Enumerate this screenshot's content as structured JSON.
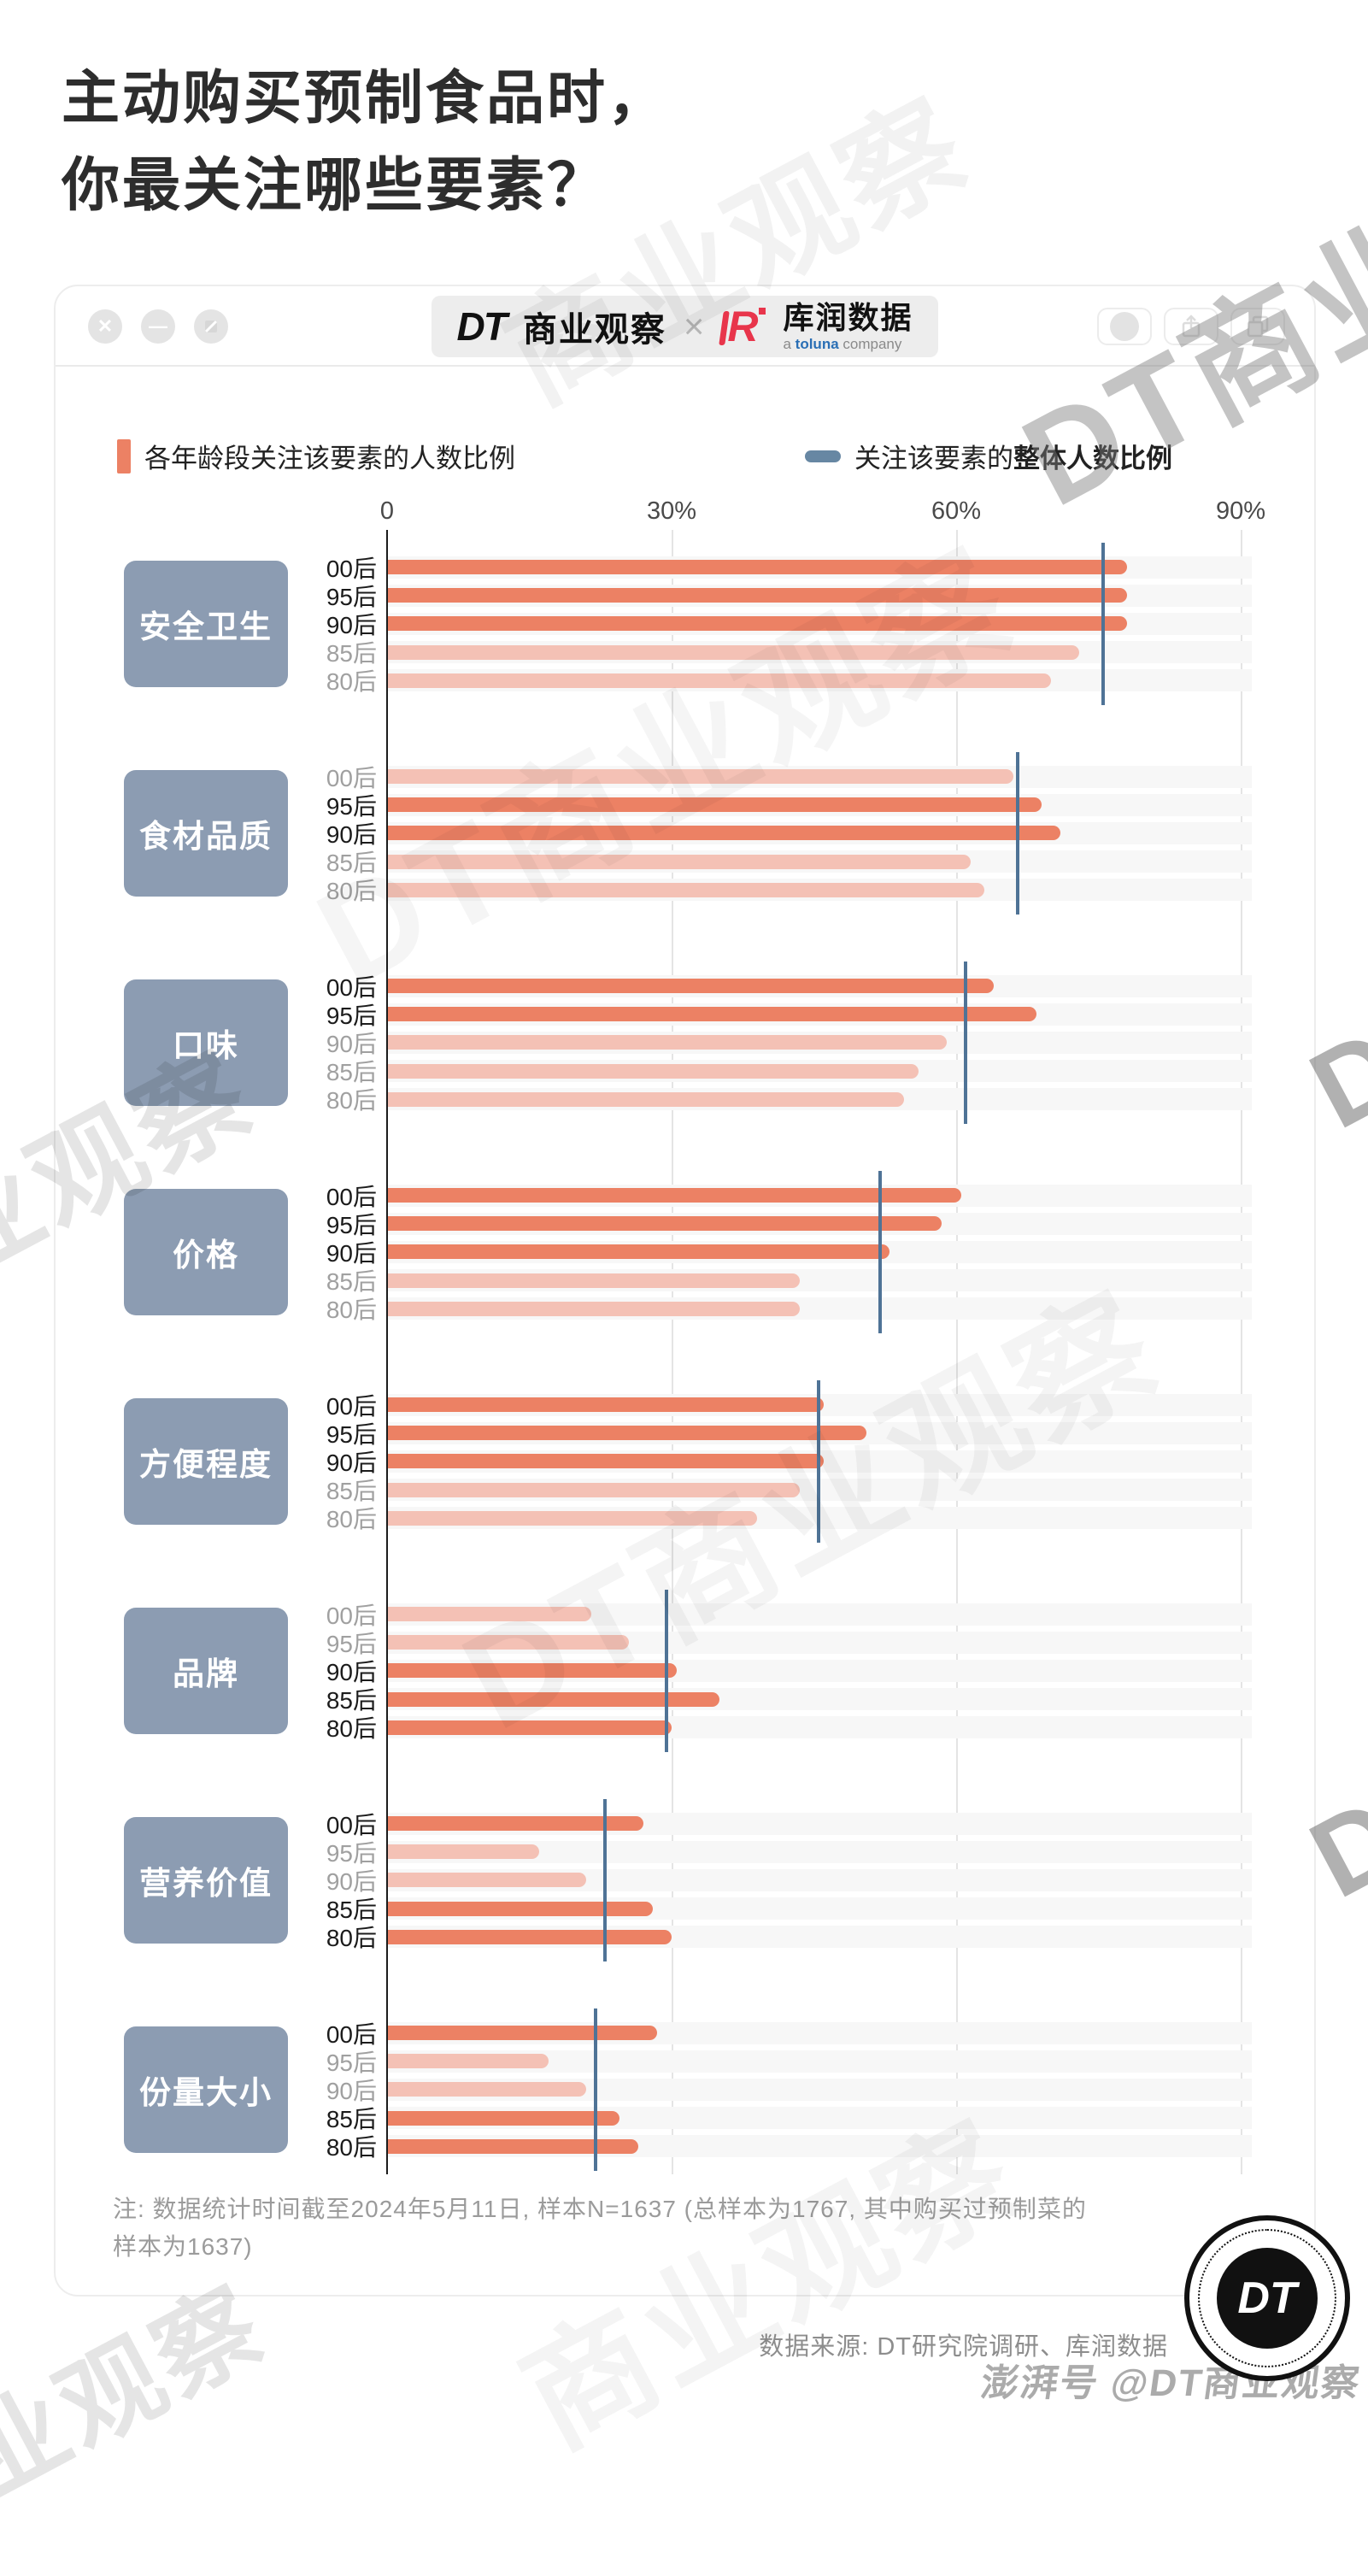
{
  "page": {
    "title_line1": "主动购买预制食品时，",
    "title_line2": "你最关注哪些要素？",
    "note_line1": "注: 数据统计时间截至2024年5月11日, 样本N=1637 (总样本为1767, 其中购买过预制菜的",
    "note_line2": "样本为1637)",
    "source": "数据来源: DT研究院调研、库润数据",
    "footer_watermark": "澎湃号 @DT商业观察",
    "watermark_full": "DT商业观察",
    "watermark_short": "商业观察"
  },
  "window": {
    "badge": {
      "dt_logo": "DT",
      "dt_name": "商业观察",
      "separator": "×",
      "kr_logo": "R",
      "kr_name": "库润数据",
      "kr_sub_a": "a ",
      "kr_sub_brand": "toluna",
      "kr_sub_b": " company",
      "dt_circle_logo": "DT"
    }
  },
  "legend": {
    "bars_label": "各年龄段关注该要素的人数比例",
    "line_label_prefix": "关注该要素的",
    "line_label_bold": "整体人数比例",
    "bar_color": "#EC8164",
    "bar_color_soft": "#F4C1B5",
    "overall_line_color": "#4F7396",
    "category_box_color": "#8C9CB2"
  },
  "chart_data": {
    "type": "bar",
    "orientation": "horizontal",
    "unit": "percent",
    "xlim": [
      0,
      90
    ],
    "x_ticks": [
      "0",
      "30%",
      "60%",
      "90%"
    ],
    "age_groups": [
      "00后",
      "95后",
      "90后",
      "85后",
      "80后"
    ],
    "categories": [
      {
        "label": "安全卫生",
        "values": [
          78,
          78,
          78,
          73,
          70
        ],
        "emphasis": [
          true,
          true,
          true,
          false,
          false
        ],
        "overall": 75.5
      },
      {
        "label": "食材品质",
        "values": [
          66,
          69,
          71,
          61.5,
          63
        ],
        "emphasis": [
          false,
          true,
          true,
          false,
          false
        ],
        "overall": 66.5
      },
      {
        "label": "口味",
        "values": [
          64,
          68.5,
          59,
          56,
          54.5
        ],
        "emphasis": [
          true,
          true,
          false,
          false,
          false
        ],
        "overall": 61
      },
      {
        "label": "价格",
        "values": [
          60.5,
          58.5,
          53,
          43.5,
          43.5
        ],
        "emphasis": [
          true,
          true,
          true,
          false,
          false
        ],
        "overall": 52
      },
      {
        "label": "方便程度",
        "values": [
          46,
          50.5,
          46,
          43.5,
          39
        ],
        "emphasis": [
          true,
          true,
          true,
          false,
          false
        ],
        "overall": 45.5
      },
      {
        "label": "品牌",
        "values": [
          21.5,
          25.5,
          30.5,
          35,
          30
        ],
        "emphasis": [
          false,
          false,
          true,
          true,
          true
        ],
        "overall": 29.5
      },
      {
        "label": "营养价值",
        "values": [
          27,
          16,
          21,
          28,
          30
        ],
        "emphasis": [
          true,
          false,
          false,
          true,
          true
        ],
        "overall": 23
      },
      {
        "label": "份量大小",
        "values": [
          28.5,
          17,
          21,
          24.5,
          26.5
        ],
        "emphasis": [
          true,
          false,
          false,
          true,
          true
        ],
        "overall": 22
      }
    ]
  }
}
